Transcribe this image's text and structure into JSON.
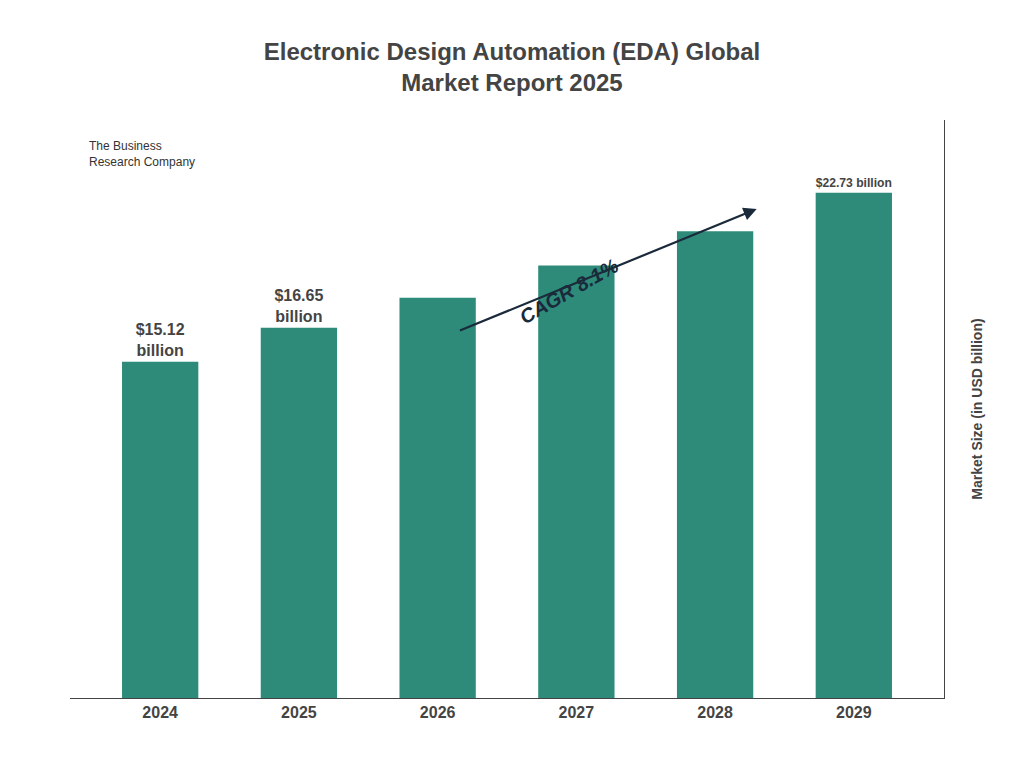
{
  "chart_data": {
    "type": "bar",
    "title": "Electronic Design Automation (EDA) Global\nMarket Report 2025",
    "categories": [
      "2024",
      "2025",
      "2026",
      "2027",
      "2028",
      "2029"
    ],
    "values": [
      15.12,
      16.65,
      18.0,
      19.45,
      21.0,
      22.73
    ],
    "value_labels": [
      "$15.12\nbillion",
      "$16.65\nbillion",
      null,
      null,
      null,
      "$22.73 billion"
    ],
    "color": "#2E8B7A",
    "ylabel": "Market Size (in USD billion)",
    "ylim": [
      0,
      26
    ],
    "grid": false,
    "tick_labels": "x",
    "annotations": [
      "CAGR 8.1%",
      "The Business\nResearch Company"
    ]
  }
}
